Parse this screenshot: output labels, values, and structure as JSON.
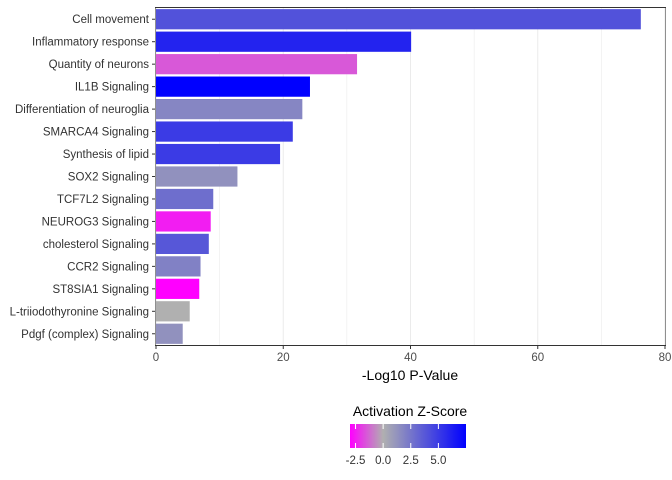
{
  "chart_data": {
    "type": "bar",
    "orientation": "horizontal",
    "xlabel": "-Log10 P-Value",
    "xlim": [
      0,
      80
    ],
    "xticks": [
      0,
      20,
      40,
      60,
      80
    ],
    "grid": true,
    "legend_position": "bottom",
    "categories": [
      "Cell movement",
      "Inflammatory response",
      "Quantity of neurons",
      "IL1B Signaling",
      "Differentiation of neuroglia",
      "SMARCA4 Signaling",
      "Synthesis of lipid",
      "SOX2 Signaling",
      "TCF7L2 Signaling",
      "NEUROG3 Signaling",
      "cholesterol Signaling",
      "CCR2 Signaling",
      "ST8SIA1 Signaling",
      "L-triiodothyronine Signaling",
      "Pdgf (complex) Signaling"
    ],
    "values": [
      76.2,
      40.1,
      31.6,
      24.2,
      23.0,
      21.5,
      19.5,
      12.8,
      9.0,
      8.6,
      8.3,
      7.0,
      6.8,
      5.3,
      4.2
    ],
    "z_scores": [
      4.0,
      6.0,
      -1.5,
      7.5,
      1.8,
      5.0,
      5.0,
      1.3,
      2.8,
      -2.5,
      3.8,
      2.0,
      -3.0,
      0.0,
      1.3
    ],
    "legend": {
      "title": "Activation Z-Score",
      "ticks": [
        "-2.5",
        "0.0",
        "2.5",
        "5.0"
      ],
      "tick_values": [
        -2.5,
        0.0,
        2.5,
        5.0
      ],
      "range": [
        -3.0,
        7.5
      ],
      "colors": [
        "#ff00ff",
        "#b0b0b0",
        "#0000ff"
      ]
    }
  }
}
